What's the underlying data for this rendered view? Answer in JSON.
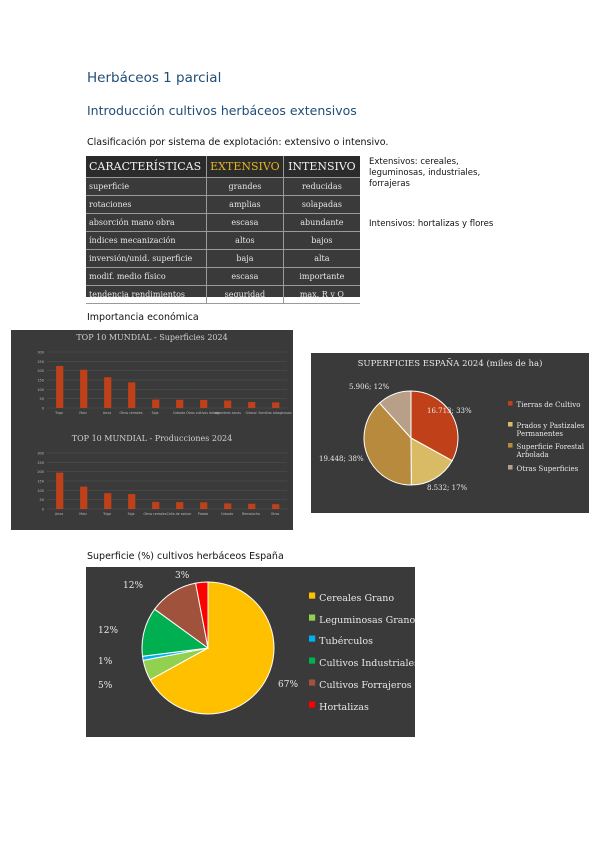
{
  "header": {
    "title": "Herbáceos 1 parcial",
    "subtitle": "Introducción cultivos herbáceos extensivos"
  },
  "classification": {
    "heading": "Clasificación por sistema de explotación: extensivo o intensivo.",
    "columns": [
      "CARACTERÍSTICAS",
      "EXTENSIVO",
      "INTENSIVO"
    ],
    "rows": [
      [
        "superficie",
        "grandes",
        "reducidas"
      ],
      [
        "rotaciones",
        "amplias",
        "solapadas"
      ],
      [
        "absorción mano obra",
        "escasa",
        "abundante"
      ],
      [
        "índices mecanización",
        "altos",
        "bajos"
      ],
      [
        "inversión/unid. superficie",
        "baja",
        "alta"
      ],
      [
        "modif. medio físico",
        "escasa",
        "importante"
      ],
      [
        "tendencia rendimientos",
        "seguridad",
        "max. R y Q"
      ]
    ],
    "note_extensivos": "Extensivos: cereales, leguminosas, industriales, forrajeras",
    "note_intensivos": "Intensivos: hortalizas y flores"
  },
  "economic": {
    "heading": "Importancia económica"
  },
  "colors": {
    "panel_bg": "#3a3a3a",
    "bar": "#c0401a",
    "extensivo_header": "#e6b422"
  },
  "chart_data": [
    {
      "type": "bar",
      "title": "TOP 10 MUNDIAL - Superficies 2024",
      "ylim": [
        0,
        300
      ],
      "yticks": [
        "300",
        "250",
        "200",
        "150",
        "100",
        "50",
        "0"
      ],
      "categories": [
        "Trigo",
        "Maíz",
        "Arroz",
        "Otros cereales",
        "Soja",
        "Cebada",
        "Otros cultivos de raíz",
        "Legumbres secas",
        "Girasol",
        "Semillas oleaginosas"
      ],
      "values": [
        225,
        205,
        165,
        137,
        45,
        44,
        43,
        40,
        32,
        30
      ]
    },
    {
      "type": "bar",
      "title": "TOP 10 MUNDIAL - Producciones 2024",
      "ylim": [
        0,
        300
      ],
      "yticks": [
        "300",
        "250",
        "200",
        "150",
        "100",
        "50",
        "0"
      ],
      "categories": [
        "Arroz",
        "Maíz",
        "Trigo",
        "Soja",
        "Otros cereales",
        "Caña de azúcar",
        "Patata",
        "Cebada",
        "Remolacha",
        "Otros"
      ],
      "values": [
        195,
        120,
        85,
        80,
        38,
        37,
        36,
        30,
        28,
        26
      ]
    },
    {
      "type": "pie",
      "title": "SUPERFICIES ESPAÑA 2024 (miles de ha)",
      "labels": [
        "Tierras de Cultivo",
        "Prados y Pastizales Permanentes",
        "Superficie Forestal Arbolada",
        "Otras Superficies"
      ],
      "values": [
        16713,
        8532,
        19448,
        5906
      ],
      "data_labels": [
        "16.713; 33%",
        "8.532; 17%",
        "19.448; 38%",
        "5.906; 12%"
      ],
      "colors": [
        "#c0401a",
        "#d9bb66",
        "#b88a3e",
        "#b8a088"
      ],
      "legend": "right"
    },
    {
      "type": "pie",
      "title": "Superficie (%) cultivos herbáceos España",
      "labels": [
        "Cereales Grano",
        "Leguminosas Grano",
        "Tubérculos",
        "Cultivos Industriales",
        "Cultivos Forrajeros",
        "Hortalizas"
      ],
      "values": [
        67,
        5,
        1,
        12,
        12,
        3
      ],
      "data_labels": [
        "67%",
        "5%",
        "1%",
        "12%",
        "12%",
        "3%"
      ],
      "colors": [
        "#ffc000",
        "#92d050",
        "#00b0f0",
        "#00b050",
        "#a0523c",
        "#ff0000"
      ],
      "legend": "right"
    }
  ]
}
